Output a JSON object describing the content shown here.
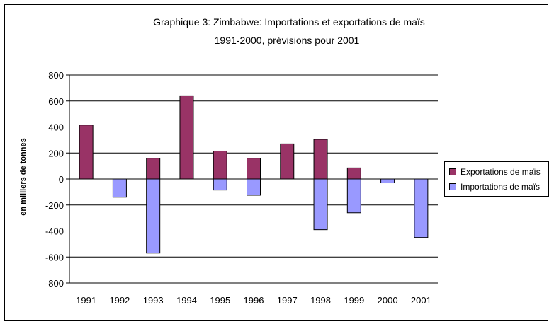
{
  "chart_data": {
    "type": "bar",
    "title_line1": "Graphique 3: Zimbabwe: Importations et exportations de maïs",
    "title_line2": "1991-2000,  prévisions pour 2001",
    "ylabel": "en milliers de tonnes",
    "xlabel": "",
    "categories": [
      "1991",
      "1992",
      "1993",
      "1994",
      "1995",
      "1996",
      "1997",
      "1998",
      "1999",
      "2000",
      "2001"
    ],
    "ylim": [
      -800,
      800
    ],
    "yticks": [
      800,
      600,
      400,
      200,
      0,
      -200,
      -400,
      -600,
      -800
    ],
    "series": [
      {
        "name": "Exportations de maïs",
        "color": "#993366",
        "values": [
          415,
          0,
          160,
          640,
          215,
          160,
          270,
          305,
          85,
          0,
          0
        ]
      },
      {
        "name": "Importations de maïs",
        "color": "#9999ff",
        "values": [
          0,
          -140,
          -570,
          0,
          -85,
          -125,
          0,
          -390,
          -260,
          -30,
          -450
        ]
      }
    ],
    "legend_position": "right",
    "grid": true
  }
}
